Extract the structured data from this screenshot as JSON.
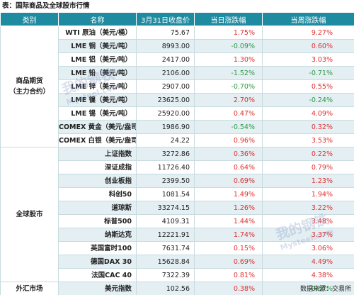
{
  "title": "表：国际商品及全球股市行情",
  "headers": {
    "category": "类别",
    "name": "名称",
    "close": "3月31日收盘价",
    "day_change": "当日涨跌幅",
    "week_change": "当周涨跌幅"
  },
  "groups": [
    {
      "category": "商品期货\n（主力合约）",
      "rows": [
        {
          "name": "WTI 原油（美元/桶）",
          "close": "75.67",
          "day": "1.75%",
          "week": "9.27%"
        },
        {
          "name": "LME 铜（美元/吨）",
          "close": "8993.00",
          "day": "-0.09%",
          "week": "0.60%"
        },
        {
          "name": "LME 铝（美元/吨）",
          "close": "2417.00",
          "day": "1.30%",
          "week": "3.03%"
        },
        {
          "name": "LME 铅（美元/吨）",
          "close": "2106.00",
          "day": "-1.52%",
          "week": "-0.71%"
        },
        {
          "name": "LME 锌（美元/吨）",
          "close": "2907.00",
          "day": "-0.70%",
          "week": "0.55%"
        },
        {
          "name": "LME 镍（美元/吨）",
          "close": "23625.00",
          "day": "2.70%",
          "week": "-0.24%"
        },
        {
          "name": "LME 锡（美元/吨）",
          "close": "25920.00",
          "day": "0.47%",
          "week": "4.09%"
        },
        {
          "name": "COMEX 黄金（美元/盎司）",
          "close": "1986.90",
          "day": "-0.54%",
          "week": "0.32%"
        },
        {
          "name": "COMEX 白银（美元/盎司）",
          "close": "24.22",
          "day": "0.96%",
          "week": "3.53%"
        }
      ]
    },
    {
      "category": "全球股市",
      "rows": [
        {
          "name": "上证指数",
          "close": "3272.86",
          "day": "0.36%",
          "week": "0.22%"
        },
        {
          "name": "深证成指",
          "close": "11726.40",
          "day": "0.64%",
          "week": "0.79%"
        },
        {
          "name": "创业板指",
          "close": "2399.50",
          "day": "0.69%",
          "week": "1.23%"
        },
        {
          "name": "科创50",
          "close": "1081.54",
          "day": "1.49%",
          "week": "1.94%"
        },
        {
          "name": "道琼斯",
          "close": "33274.15",
          "day": "1.26%",
          "week": "3.22%"
        },
        {
          "name": "标普500",
          "close": "4109.31",
          "day": "1.44%",
          "week": "3.48%"
        },
        {
          "name": "纳斯达克",
          "close": "12221.91",
          "day": "1.74%",
          "week": "3.37%"
        },
        {
          "name": "英国富时100",
          "close": "7631.74",
          "day": "0.15%",
          "week": "3.06%"
        },
        {
          "name": "德国DAX 30",
          "close": "15628.84",
          "day": "0.69%",
          "week": "4.49%"
        },
        {
          "name": "法国CAC 40",
          "close": "7322.39",
          "day": "0.81%",
          "week": "4.38%"
        }
      ]
    },
    {
      "category": "外汇市场",
      "rows": [
        {
          "name": "美元指数",
          "close": "102.56",
          "day": "0.38%",
          "week": "-0.67%"
        }
      ]
    }
  ],
  "source": "数据来源：交易所",
  "watermark": {
    "main": "我的钢铁",
    "sub": "Mysteel.com"
  },
  "colors": {
    "header_bg": "#1f8ba0",
    "up": "#e03030",
    "down": "#2e9a44",
    "stripe": "#e3eff3"
  }
}
